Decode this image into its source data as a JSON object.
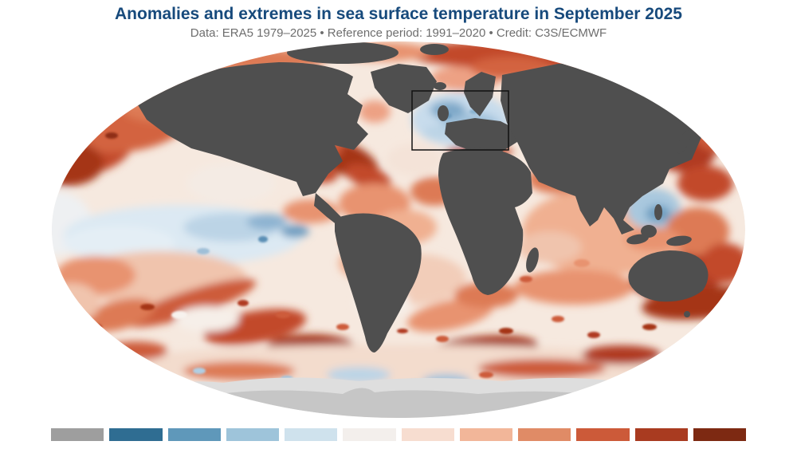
{
  "header": {
    "title": "Anomalies and extremes in sea surface temperature in September 2025",
    "subtitle": "Data: ERA5 1979–2025 • Reference period: 1991–2020 • Credit: C3S/ECMWF"
  },
  "theme": {
    "title-color": "#174a7c",
    "subtitle-color": "#6e6e6e",
    "land-color": "#4f4f4f",
    "antarctica-color": "#c6c6c6",
    "sea-ice-color": "#dedede",
    "highlight-box-color": "#111111"
  },
  "map": {
    "region_highlight": "North Atlantic"
  },
  "legend": {
    "colors": [
      "#9e9e9e",
      "#2f6d92",
      "#5f98ba",
      "#9ec4da",
      "#cfe2ed",
      "#f3efec",
      "#f7ddd0",
      "#f2b699",
      "#e08b66",
      "#cc5a39",
      "#a93b20",
      "#7d2912"
    ]
  }
}
